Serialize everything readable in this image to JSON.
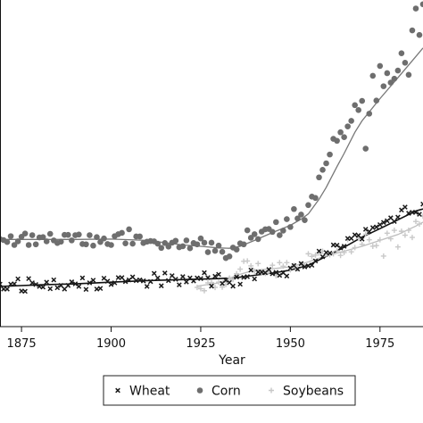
{
  "chart_data": {
    "type": "scatter",
    "xlabel": "Year",
    "ylabel": "",
    "xlim": [
      1869,
      1987
    ],
    "ylim": [
      0,
      100
    ],
    "xticks": [
      1875,
      1900,
      1925,
      1950,
      1975
    ],
    "grid": false,
    "legend": {
      "placement": "bottom-center",
      "boxed": true
    },
    "colors": {
      "Wheat": "#1a1a1a",
      "Corn": "#6e6e6e",
      "Soybeans": "#c8c8c8"
    },
    "series": [
      {
        "name": "Wheat",
        "marker": "x",
        "x": [
          1869,
          1870,
          1871,
          1872,
          1873,
          1874,
          1875,
          1876,
          1877,
          1878,
          1879,
          1880,
          1881,
          1882,
          1883,
          1884,
          1885,
          1886,
          1887,
          1888,
          1889,
          1890,
          1891,
          1892,
          1893,
          1894,
          1895,
          1896,
          1897,
          1898,
          1899,
          1900,
          1901,
          1902,
          1903,
          1904,
          1905,
          1906,
          1907,
          1908,
          1909,
          1910,
          1911,
          1912,
          1913,
          1914,
          1915,
          1916,
          1917,
          1918,
          1919,
          1920,
          1921,
          1922,
          1923,
          1924,
          1925,
          1926,
          1927,
          1928,
          1929,
          1930,
          1931,
          1932,
          1933,
          1934,
          1935,
          1936,
          1937,
          1938,
          1939,
          1940,
          1941,
          1942,
          1943,
          1944,
          1945,
          1946,
          1947,
          1948,
          1949,
          1950,
          1951,
          1952,
          1953,
          1954,
          1955,
          1956,
          1957,
          1958,
          1959,
          1960,
          1961,
          1962,
          1963,
          1964,
          1965,
          1966,
          1967,
          1968,
          1969,
          1970,
          1971,
          1972,
          1973,
          1974,
          1975,
          1976,
          1977,
          1978,
          1979,
          1980,
          1981,
          1982,
          1983,
          1984,
          1985,
          1986,
          1987
        ],
        "y": [
          13.0,
          11.5,
          11.5,
          13.0,
          13.1,
          14.6,
          10.9,
          10.8,
          14.7,
          13.4,
          12.9,
          12.3,
          12.1,
          13.6,
          11.6,
          14.3,
          11.9,
          12.6,
          11.5,
          12.6,
          13.7,
          13.1,
          12.3,
          14.9,
          11.4,
          13.4,
          14.2,
          11.5,
          11.7,
          14.8,
          13.9,
          12.9,
          13.4,
          15.0,
          15.0,
          13.8,
          14.3,
          15.2,
          14.1,
          14.3,
          14.0,
          12.3,
          13.8,
          16.3,
          14.9,
          12.5,
          16.4,
          14.1,
          15.6,
          14.5,
          12.8,
          15.3,
          13.7,
          14.9,
          14.0,
          14.9,
          14.7,
          16.5,
          15.0,
          12.4,
          15.4,
          16.0,
          13.2,
          14.2,
          13.5,
          12.4,
          15.2,
          13.0,
          15.1,
          15.3,
          17.3,
          14.6,
          16.7,
          16.7,
          16.5,
          17.5,
          16.2,
          16.6,
          15.7,
          16.5,
          15.5,
          17.9,
          18.7,
          17.6,
          19.3,
          18.3,
          18.6,
          18.8,
          20.1,
          23.1,
          21.4,
          22.7,
          22.5,
          25.0,
          24.9,
          24.1,
          24.6,
          27.0,
          27.0,
          28.1,
          27.9,
          26.8,
          29.8,
          29.1,
          30.3,
          30.5,
          31.2,
          31.9,
          32.4,
          33.3,
          32.2,
          33.5,
          35.7,
          36.6,
          34.7,
          35.0,
          35.0,
          34.4,
          37.5
        ]
      },
      {
        "name": "Corn",
        "marker": "o",
        "x": [
          1869,
          1870,
          1871,
          1872,
          1873,
          1874,
          1875,
          1876,
          1877,
          1878,
          1879,
          1880,
          1881,
          1882,
          1883,
          1884,
          1885,
          1886,
          1887,
          1888,
          1889,
          1890,
          1891,
          1892,
          1893,
          1894,
          1895,
          1896,
          1897,
          1898,
          1899,
          1900,
          1901,
          1902,
          1903,
          1904,
          1905,
          1906,
          1907,
          1908,
          1909,
          1910,
          1911,
          1912,
          1913,
          1914,
          1915,
          1916,
          1917,
          1918,
          1919,
          1920,
          1921,
          1922,
          1923,
          1924,
          1925,
          1926,
          1927,
          1928,
          1929,
          1930,
          1931,
          1932,
          1933,
          1934,
          1935,
          1936,
          1937,
          1938,
          1939,
          1940,
          1941,
          1942,
          1943,
          1944,
          1945,
          1946,
          1947,
          1948,
          1949,
          1950,
          1951,
          1952,
          1953,
          1954,
          1955,
          1956,
          1957,
          1958,
          1959,
          1960,
          1961,
          1962,
          1963,
          1964,
          1965,
          1966,
          1967,
          1968,
          1969,
          1970,
          1971,
          1972,
          1973,
          1974,
          1975,
          1976,
          1977,
          1978,
          1979,
          1980,
          1981,
          1982,
          1983,
          1984,
          1985,
          1986,
          1987
        ],
        "y": [
          26.8,
          26.5,
          25.9,
          27.7,
          25.0,
          26.1,
          27.5,
          28.5,
          25.0,
          28.0,
          25.2,
          27.3,
          27.4,
          26.1,
          28.4,
          26.4,
          25.6,
          26.0,
          28.1,
          28.1,
          26.4,
          28.0,
          28.2,
          25.3,
          25.2,
          28.0,
          24.8,
          27.4,
          25.9,
          27.0,
          25.3,
          25.0,
          27.7,
          28.3,
          28.7,
          25.5,
          29.8,
          25.4,
          27.6,
          27.6,
          25.6,
          26.0,
          26.2,
          26.1,
          25.4,
          24.1,
          25.6,
          24.5,
          25.7,
          26.3,
          24.3,
          24.6,
          26.4,
          24.0,
          25.6,
          25.2,
          27.0,
          25.7,
          22.8,
          25.7,
          23.2,
          24.8,
          22.9,
          21.0,
          21.5,
          24.2,
          23.6,
          25.5,
          25.2,
          29.5,
          27.2,
          28.3,
          26.8,
          29.1,
          29.8,
          29.9,
          29.0,
          32.0,
          28.0,
          29.4,
          32.9,
          30.5,
          36.0,
          33.1,
          34.3,
          32.6,
          37.2,
          39.8,
          39.4,
          45.7,
          48.0,
          50.0,
          52.7,
          57.5,
          56.9,
          59.5,
          58.0,
          61.3,
          63.0,
          67.8,
          66.3,
          69.1,
          54.5,
          65.2,
          76.8,
          69.2,
          79.8,
          73.6,
          77.6,
          74.7,
          75.9,
          78.4,
          83.7,
          80.8,
          77.1,
          90.7,
          97.4,
          89.3,
          98.7
        ]
      },
      {
        "name": "Soybeans",
        "marker": "+",
        "x": [
          1924,
          1925,
          1926,
          1927,
          1928,
          1929,
          1930,
          1931,
          1932,
          1933,
          1934,
          1935,
          1936,
          1937,
          1938,
          1939,
          1940,
          1941,
          1942,
          1943,
          1944,
          1945,
          1946,
          1947,
          1948,
          1949,
          1950,
          1951,
          1952,
          1953,
          1954,
          1955,
          1956,
          1957,
          1958,
          1959,
          1960,
          1961,
          1962,
          1963,
          1964,
          1965,
          1966,
          1967,
          1968,
          1969,
          1970,
          1971,
          1972,
          1973,
          1974,
          1975,
          1976,
          1977,
          1978,
          1979,
          1980,
          1981,
          1982,
          1983,
          1984,
          1985,
          1986,
          1987
        ],
        "y": [
          12.0,
          11.6,
          11.0,
          13.4,
          13.5,
          12.0,
          13.6,
          12.1,
          12.9,
          14.9,
          14.4,
          16.2,
          17.6,
          20.0,
          20.1,
          18.6,
          17.0,
          19.3,
          16.6,
          16.3,
          16.8,
          18.8,
          15.6,
          19.6,
          18.5,
          19.6,
          17.4,
          18.7,
          17.7,
          19.1,
          18.9,
          22.3,
          21.5,
          21.9,
          22.5,
          23.1,
          22.2,
          22.0,
          22.3,
          23.2,
          21.8,
          22.7,
          26.6,
          22.9,
          24.2,
          27.0,
          25.2,
          28.3,
          26.6,
          24.6,
          24.8,
          26.6,
          21.6,
          28.6,
          26.9,
          29.5,
          24.4,
          29.2,
          28.0,
          29.5,
          27.3,
          32.2,
          31.4,
          33.8
        ]
      }
    ],
    "trend_lines": [
      {
        "name": "Wheat",
        "x": [
          1869,
          1880,
          1890,
          1900,
          1910,
          1920,
          1930,
          1935,
          1940,
          1945,
          1950,
          1955,
          1960,
          1965,
          1970,
          1975,
          1980,
          1985,
          1987
        ],
        "y": [
          12.3,
          12.8,
          13.1,
          13.6,
          14.1,
          14.4,
          14.7,
          15.0,
          15.7,
          16.4,
          17.3,
          18.8,
          21.5,
          24.3,
          27.4,
          30.0,
          32.7,
          35.4,
          36.0
        ]
      },
      {
        "name": "Corn",
        "x": [
          1869,
          1880,
          1890,
          1900,
          1905,
          1910,
          1915,
          1920,
          1925,
          1930,
          1933,
          1936,
          1940,
          1945,
          1950,
          1953,
          1955,
          1958,
          1960,
          1963,
          1965,
          1968,
          1970,
          1975,
          1980,
          1985,
          1987
        ],
        "y": [
          26.7,
          26.7,
          26.7,
          26.8,
          26.6,
          26.4,
          25.7,
          25.0,
          24.6,
          24.1,
          24.0,
          24.6,
          26.4,
          28.8,
          31.0,
          32.9,
          34.5,
          39.0,
          42.6,
          49.0,
          53.0,
          59.5,
          63.0,
          69.8,
          76.2,
          82.7,
          85.3
        ]
      },
      {
        "name": "Soybeans",
        "x": [
          1924,
          1930,
          1935,
          1940,
          1945,
          1950,
          1955,
          1960,
          1965,
          1970,
          1975,
          1980,
          1985,
          1987
        ],
        "y": [
          12.4,
          13.4,
          15.7,
          17.3,
          17.7,
          18.3,
          19.8,
          21.7,
          23.1,
          24.6,
          26.4,
          28.2,
          30.8,
          32.0
        ]
      }
    ]
  }
}
